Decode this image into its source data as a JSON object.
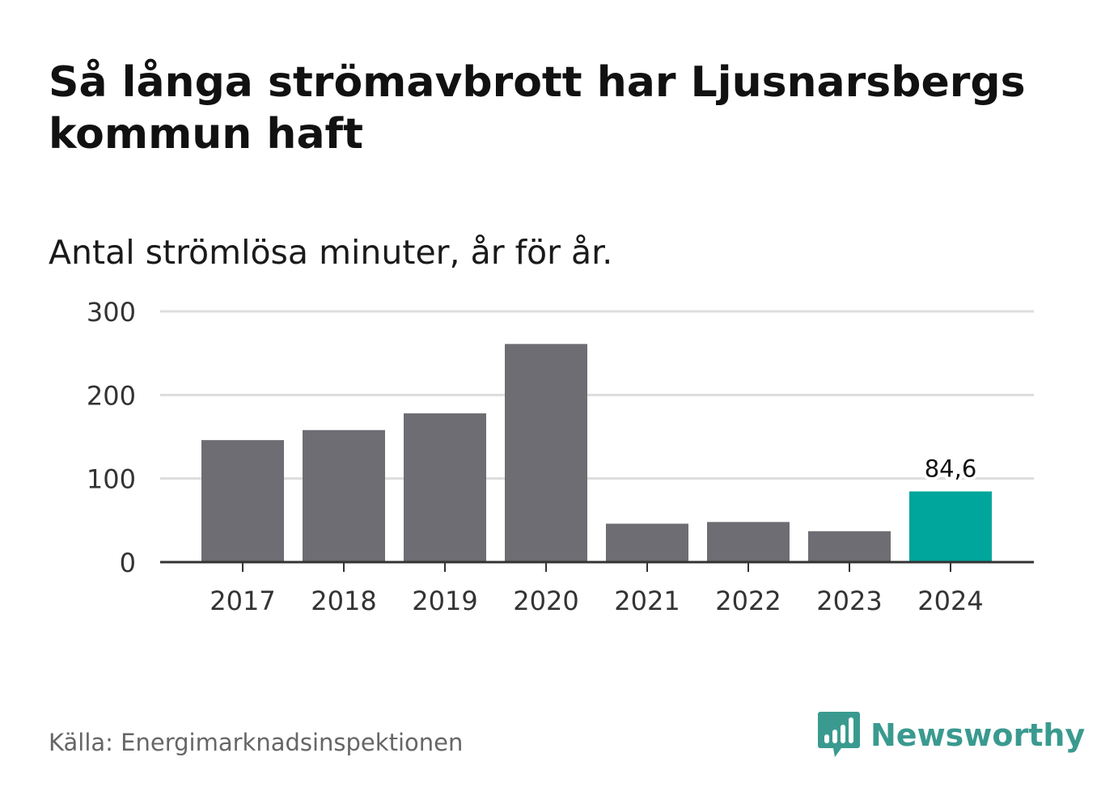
{
  "title": "Så långa strömavbrott har Ljusnarsbergs kommun haft",
  "subtitle": "Antal strömlösa minuter, år för år.",
  "source": "Källa: Energimarknadsinspektionen",
  "brand": {
    "name": "Newsworthy",
    "icon": "newsworthy-logo-icon"
  },
  "colors": {
    "bar": "#6e6d73",
    "highlight": "#00a59b",
    "grid": "#dddddd",
    "axis": "#333333",
    "brand": "#3a9a8f"
  },
  "chart_data": {
    "type": "bar",
    "categories": [
      "2017",
      "2018",
      "2019",
      "2020",
      "2021",
      "2022",
      "2023",
      "2024"
    ],
    "values": [
      146,
      158,
      178,
      261,
      46,
      48,
      37,
      84.6
    ],
    "highlight_index": 7,
    "data_labels": [
      {
        "index": 7,
        "text": "84,6"
      }
    ],
    "yticks": [
      {
        "value": 0,
        "label": "0"
      },
      {
        "value": 100,
        "label": "100"
      },
      {
        "value": 200,
        "label": "200"
      },
      {
        "value": 300,
        "label": "300"
      }
    ],
    "ylim": [
      0,
      300
    ],
    "grid": true,
    "xlabel": "",
    "ylabel": ""
  }
}
